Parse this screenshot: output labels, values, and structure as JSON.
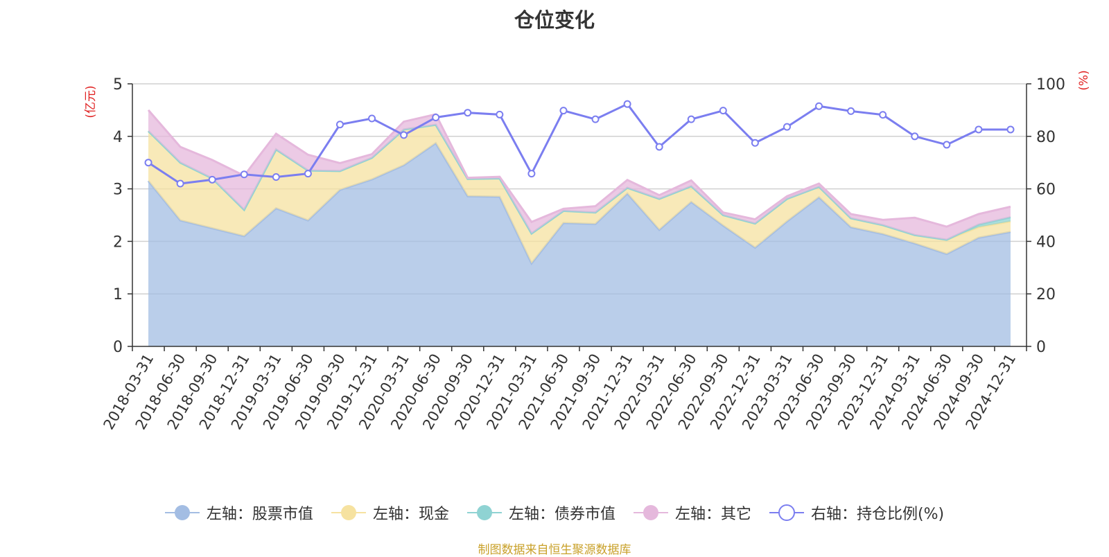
{
  "chart_data": {
    "type": "area",
    "title": "仓位变化",
    "left_unit": "(亿元)",
    "right_unit": "(%)",
    "source_note": "制图数据来自恒生聚源数据库",
    "categories": [
      "2018-03-31",
      "2018-06-30",
      "2018-09-30",
      "2018-12-31",
      "2019-03-31",
      "2019-06-30",
      "2019-09-30",
      "2019-12-31",
      "2020-03-31",
      "2020-06-30",
      "2020-09-30",
      "2020-12-31",
      "2021-03-31",
      "2021-06-30",
      "2021-09-30",
      "2021-12-31",
      "2022-03-31",
      "2022-06-30",
      "2022-09-30",
      "2022-12-31",
      "2023-03-31",
      "2023-06-30",
      "2023-09-30",
      "2023-12-31",
      "2024-03-31",
      "2024-06-30",
      "2024-09-30",
      "2024-12-31"
    ],
    "left_axis": {
      "min": 0,
      "max": 5,
      "ticks": [
        0,
        1,
        2,
        3,
        4,
        5
      ]
    },
    "right_axis": {
      "min": 0,
      "max": 100,
      "ticks": [
        0,
        20,
        40,
        60,
        80,
        100
      ]
    },
    "series": [
      {
        "name": "左轴：股票市值",
        "axis": "left",
        "stack": true,
        "color": "#a3bde3",
        "values": [
          3.15,
          2.4,
          2.25,
          2.1,
          2.63,
          2.4,
          2.98,
          3.18,
          3.45,
          3.87,
          2.86,
          2.85,
          1.58,
          2.35,
          2.33,
          2.91,
          2.22,
          2.75,
          2.3,
          1.88,
          2.38,
          2.84,
          2.27,
          2.14,
          1.96,
          1.76,
          2.07,
          2.18
        ]
      },
      {
        "name": "左轴：现金",
        "axis": "left",
        "stack": true,
        "color": "#f6e2a0",
        "values": [
          0.95,
          1.1,
          0.95,
          0.5,
          1.12,
          0.95,
          0.36,
          0.41,
          0.68,
          0.35,
          0.33,
          0.35,
          0.57,
          0.23,
          0.22,
          0.11,
          0.59,
          0.3,
          0.2,
          0.46,
          0.43,
          0.2,
          0.17,
          0.17,
          0.16,
          0.27,
          0.2,
          0.2
        ]
      },
      {
        "name": "左轴：债券市值",
        "axis": "left",
        "stack": true,
        "color": "#8fd3d3",
        "values": [
          0,
          0,
          0,
          0,
          0,
          0,
          0,
          0,
          0,
          0,
          0,
          0,
          0,
          0,
          0,
          0,
          0,
          0,
          0,
          0,
          0,
          0,
          0,
          0,
          0,
          0,
          0.05,
          0.08
        ]
      },
      {
        "name": "左轴：其它",
        "axis": "left",
        "stack": true,
        "color": "#e5b8dc",
        "values": [
          0.4,
          0.3,
          0.35,
          0.65,
          0.3,
          0.3,
          0.15,
          0.07,
          0.15,
          0.2,
          0.02,
          0.03,
          0.22,
          0.04,
          0.12,
          0.15,
          0.07,
          0.11,
          0.05,
          0.08,
          0.05,
          0.06,
          0.08,
          0.1,
          0.33,
          0.25,
          0.2,
          0.2
        ]
      },
      {
        "name": "右轴：持仓比例(%)",
        "axis": "right",
        "stack": false,
        "color": "#7b7ef0",
        "values": [
          70,
          62,
          63.5,
          65.5,
          64.5,
          65.8,
          84.5,
          86.8,
          80.5,
          87.2,
          89,
          88.3,
          65.8,
          89.8,
          86.5,
          92.3,
          76,
          86.5,
          89.8,
          77.5,
          83.6,
          91.5,
          89.6,
          88.2,
          80,
          76.8,
          82.6,
          82.6
        ]
      }
    ]
  }
}
